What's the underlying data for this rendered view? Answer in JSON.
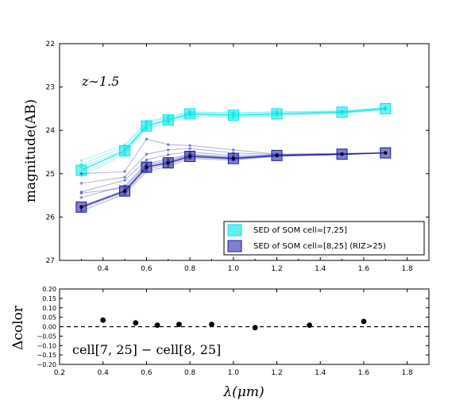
{
  "chart_data": [
    {
      "type": "line",
      "ylabel": "magnitude(AB)",
      "annotation": "z∼1.5",
      "xlim": [
        0.2,
        1.9
      ],
      "ylim": [
        27,
        22
      ],
      "xticks": [
        "0.4",
        "0.6",
        "0.8",
        "1.0",
        "1.2",
        "1.4",
        "1.6",
        "1.8"
      ],
      "yticks": [
        "22",
        "23",
        "24",
        "25",
        "26",
        "27"
      ],
      "x": [
        0.3,
        0.5,
        0.6,
        0.7,
        0.8,
        1.0,
        1.2,
        1.5,
        1.7
      ],
      "legend_position": "lower-right",
      "series": [
        {
          "name": "SED of SOM cell=[7,25]",
          "color": "#00e5e5",
          "marker": "square",
          "values": [
            24.92,
            24.47,
            23.9,
            23.76,
            23.62,
            23.65,
            23.62,
            23.58,
            23.5
          ],
          "members": [
            [
              24.78,
              24.38,
              23.82,
              23.7,
              23.58,
              23.6,
              23.58,
              23.56,
              23.48
            ],
            [
              24.85,
              24.43,
              23.86,
              23.73,
              23.6,
              23.63,
              23.6,
              23.57,
              23.49
            ],
            [
              24.98,
              24.52,
              23.94,
              23.79,
              23.64,
              23.68,
              23.64,
              23.6,
              23.51
            ],
            [
              25.05,
              24.56,
              23.97,
              23.82,
              23.67,
              23.71,
              23.66,
              23.61,
              23.52
            ],
            [
              24.7,
              24.33,
              23.79,
              23.68,
              23.57,
              23.59,
              23.57,
              23.55,
              23.47
            ]
          ]
        },
        {
          "name": "SED of SOM cell=[8,25] (RIZ>25)",
          "color": "#1a1aa0",
          "marker": "square",
          "values": [
            25.77,
            25.4,
            24.85,
            24.75,
            24.6,
            24.65,
            24.58,
            24.55,
            24.52
          ],
          "members": [
            [
              25.0,
              24.95,
              24.2,
              24.33,
              24.35,
              24.45,
              24.55,
              24.53,
              24.52
            ],
            [
              25.22,
              25.08,
              24.55,
              24.45,
              24.42,
              24.52,
              24.56,
              24.54,
              24.52
            ],
            [
              25.42,
              25.15,
              24.68,
              24.56,
              24.5,
              24.58,
              24.57,
              24.55,
              24.52
            ],
            [
              25.55,
              25.28,
              24.77,
              24.66,
              24.55,
              24.62,
              24.58,
              24.55,
              24.52
            ],
            [
              25.75,
              25.38,
              24.83,
              24.72,
              24.58,
              24.64,
              24.58,
              24.55,
              24.52
            ],
            [
              25.8,
              25.43,
              24.9,
              24.78,
              24.62,
              24.67,
              24.59,
              24.56,
              24.52
            ],
            [
              25.86,
              25.47,
              24.95,
              24.83,
              24.65,
              24.69,
              24.6,
              24.56,
              24.52
            ],
            [
              25.45,
              25.33,
              24.8,
              24.7,
              24.56,
              24.63,
              24.58,
              24.55,
              24.52
            ]
          ]
        }
      ]
    },
    {
      "type": "scatter",
      "xlabel": "λ(μm)",
      "ylabel": "Δcolor",
      "annotation": "cell[7, 25]  −  cell[8, 25]",
      "xlim": [
        0.2,
        1.9
      ],
      "ylim": [
        -0.2,
        0.2
      ],
      "xticks": [
        "0.2",
        "0.4",
        "0.6",
        "0.8",
        "1.0",
        "1.2",
        "1.4",
        "1.6",
        "1.8"
      ],
      "yticks": [
        "0.20",
        "0.15",
        "0.10",
        "0.05",
        "0.00",
        "−0.05",
        "−0.10",
        "−0.15",
        "−0.20"
      ],
      "reference_line": 0.0,
      "x": [
        0.4,
        0.55,
        0.65,
        0.75,
        0.9,
        1.1,
        1.35,
        1.6
      ],
      "y": [
        0.035,
        0.02,
        0.008,
        0.012,
        0.012,
        -0.005,
        0.008,
        0.028
      ]
    }
  ]
}
